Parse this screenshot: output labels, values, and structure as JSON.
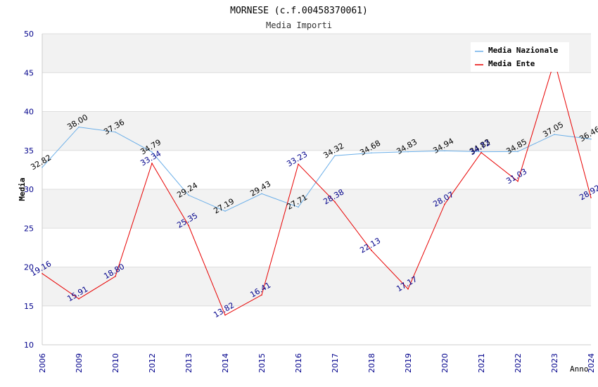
{
  "chart_data": {
    "type": "line",
    "title": "MORNESE (c.f.00458370061)",
    "subtitle": "Media Importi",
    "xlabel": "Anno",
    "ylabel": "Media",
    "ylim": [
      10,
      50
    ],
    "yticks": [
      10,
      15,
      20,
      25,
      30,
      35,
      40,
      45,
      50
    ],
    "categories": [
      "2006",
      "2009",
      "2010",
      "2012",
      "2013",
      "2014",
      "2015",
      "2016",
      "2017",
      "2018",
      "2019",
      "2020",
      "2021",
      "2022",
      "2023",
      "2024"
    ],
    "legend_position": "top-right",
    "series": [
      {
        "name": "Media Nazionale",
        "color": "#6aaee8",
        "label_color": "#000000",
        "values": [
          32.82,
          38.0,
          37.36,
          34.79,
          29.24,
          27.19,
          29.43,
          27.71,
          34.32,
          34.68,
          34.83,
          34.94,
          34.83,
          34.85,
          37.05,
          36.46
        ],
        "labels": [
          "32.82",
          "38.00",
          "37.36",
          "34.79",
          "29.24",
          "27.19",
          "29.43",
          "27.71",
          "34.32",
          "34.68",
          "34.83",
          "34.94",
          "34.83",
          "34.85",
          "37.05",
          "36.46"
        ]
      },
      {
        "name": "Media Ente",
        "color": "#e80000",
        "label_color": "#00008b",
        "values": [
          19.16,
          15.91,
          18.8,
          33.34,
          25.35,
          13.82,
          16.41,
          33.23,
          28.38,
          22.13,
          17.17,
          28.07,
          34.72,
          31.03,
          46.5,
          28.92
        ],
        "labels": [
          "19.16",
          "15.91",
          "18.80",
          "33.34",
          "25.35",
          "13.82",
          "16.41",
          "33.23",
          "28.38",
          "22.13",
          "17.17",
          "28.07",
          "34.72",
          "31.03",
          "",
          "28.92"
        ]
      }
    ]
  }
}
